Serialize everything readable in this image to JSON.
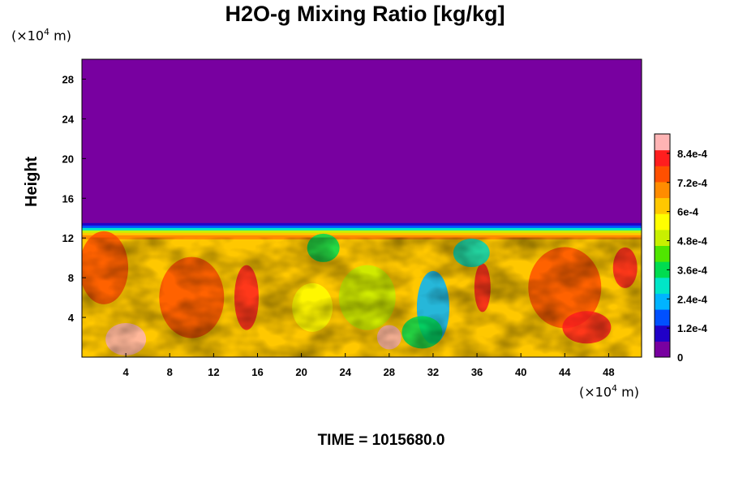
{
  "chart_data": {
    "type": "heatmap",
    "title": "H2O-g Mixing Ratio [kg/kg]",
    "ylabel": "Height",
    "xlabel": "",
    "y_unit": {
      "prefix": "(×10",
      "exp": "4",
      "suffix": " m)"
    },
    "x_unit": {
      "prefix": "(×10",
      "exp": "4",
      "suffix": " m)"
    },
    "xlim": [
      0,
      51
    ],
    "ylim": [
      0,
      30
    ],
    "x_ticks": [
      4,
      8,
      12,
      16,
      20,
      24,
      28,
      32,
      36,
      40,
      44,
      48
    ],
    "y_ticks": [
      4,
      8,
      12,
      16,
      20,
      24,
      28
    ],
    "value_range": [
      0,
      0.00092
    ],
    "colorbar": {
      "tick_labels": [
        "0",
        "1.2e-4",
        "2.4e-4",
        "3.6e-4",
        "4.8e-4",
        "6e-4",
        "7.2e-4",
        "8.4e-4"
      ],
      "tick_values": [
        0,
        0.00012,
        0.00024,
        0.00036,
        0.00048,
        0.0006,
        0.00072,
        0.00084
      ],
      "colormap": [
        "#7800a0",
        "#2000c8",
        "#0050ff",
        "#00b4ff",
        "#00e6c8",
        "#00dc50",
        "#50e600",
        "#c8f000",
        "#ffff00",
        "#ffc800",
        "#ff8c00",
        "#ff5000",
        "#ff1e1e",
        "#ffb4b4"
      ]
    },
    "background_value": 0,
    "moist_layer_top": 13.5
  },
  "footer": {
    "time": "TIME = 1015680.0"
  }
}
